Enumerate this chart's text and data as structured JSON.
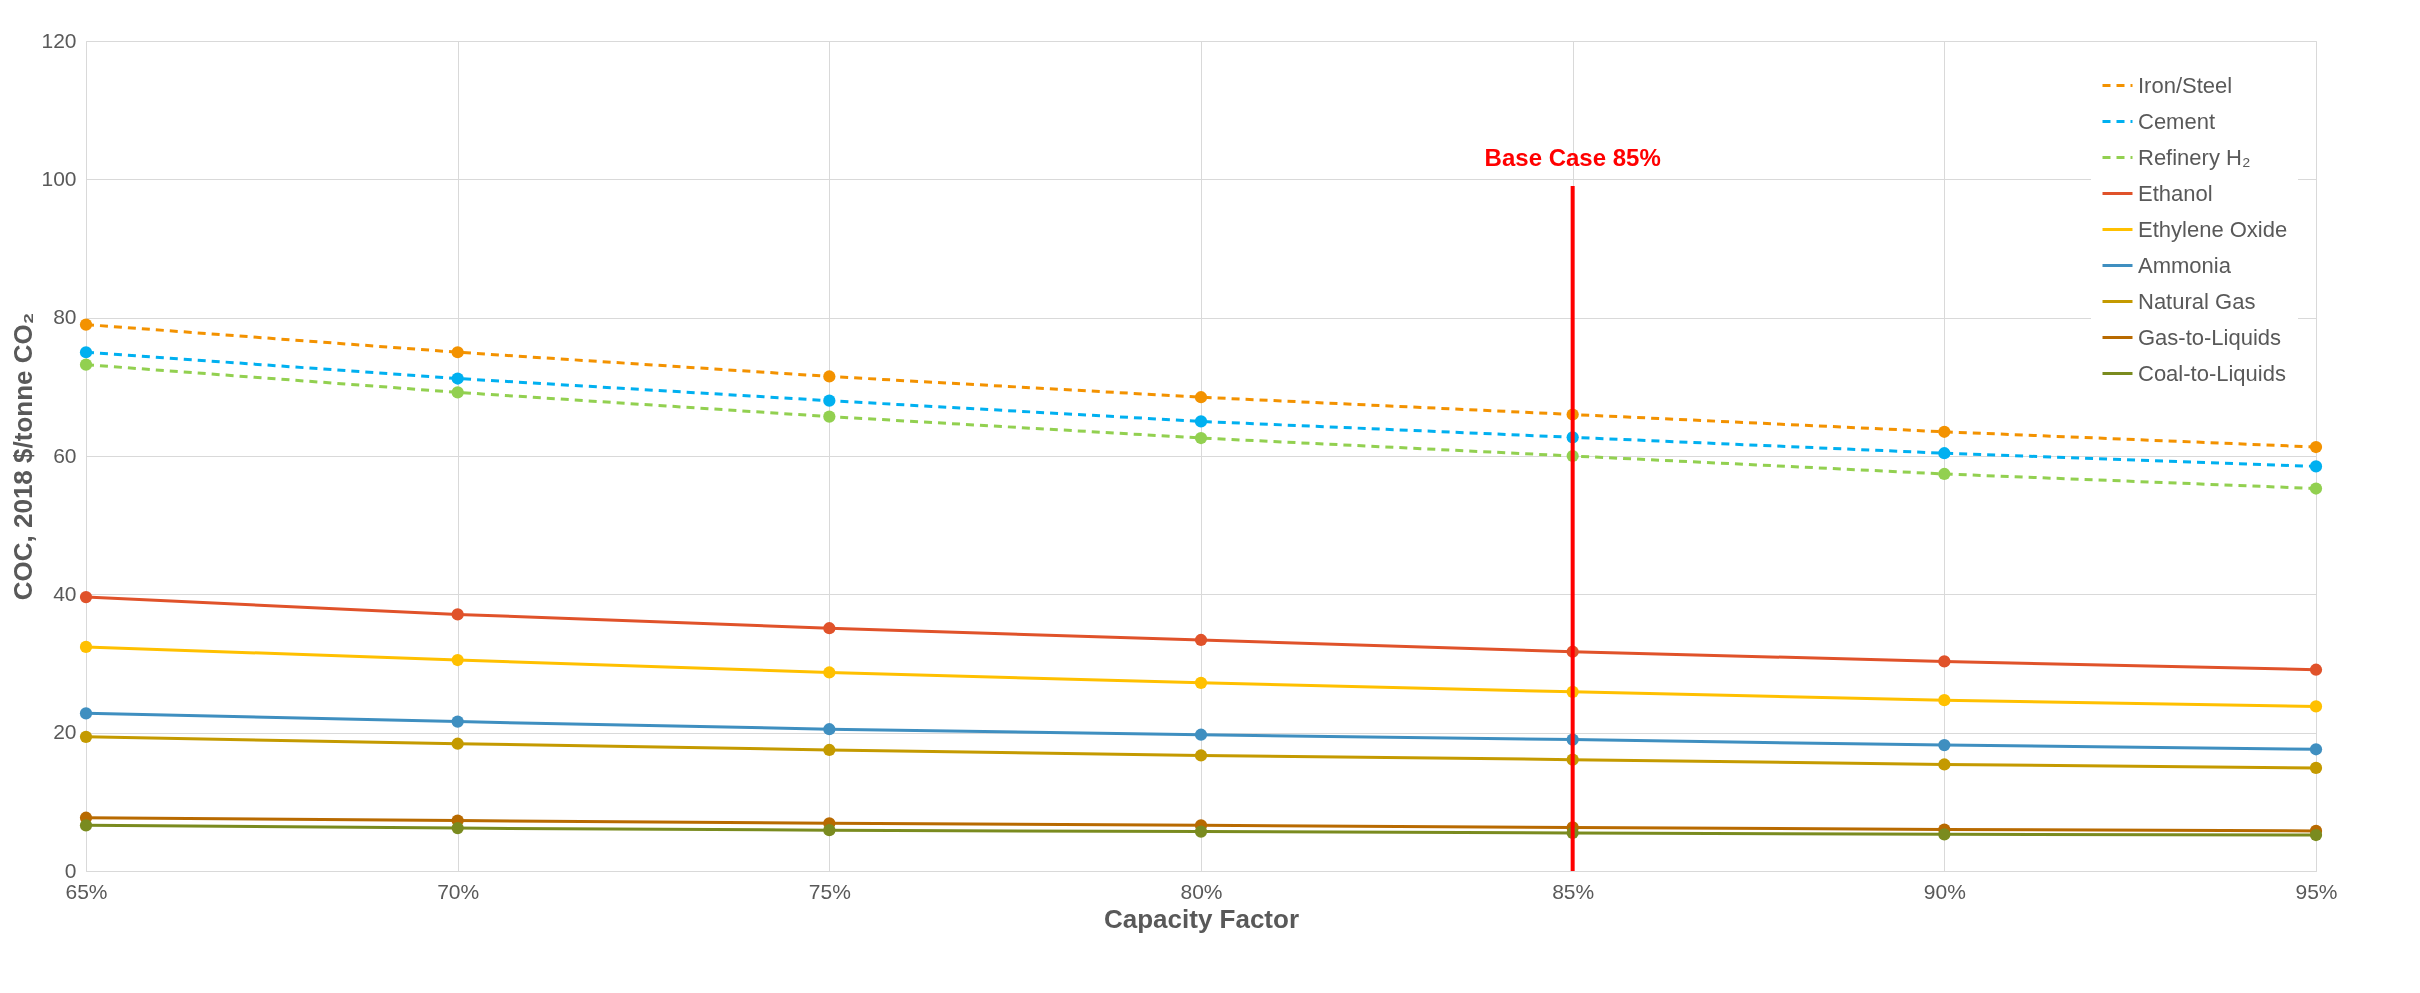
{
  "chart_data": {
    "type": "line",
    "xlabel": "Capacity Factor",
    "ylabel": "COC, 2018 $/tonne CO₂",
    "x": [
      65,
      70,
      75,
      80,
      85,
      90,
      95
    ],
    "xlim": [
      65,
      95
    ],
    "xticks": [
      {
        "value": 65,
        "label": "65%"
      },
      {
        "value": 70,
        "label": "70%"
      },
      {
        "value": 75,
        "label": "75%"
      },
      {
        "value": 80,
        "label": "80%"
      },
      {
        "value": 85,
        "label": "85%"
      },
      {
        "value": 90,
        "label": "90%"
      },
      {
        "value": 95,
        "label": "95%"
      }
    ],
    "ylim": [
      0,
      120
    ],
    "yticks": [
      0,
      20,
      40,
      60,
      80,
      100,
      120
    ],
    "grid": true,
    "legend": "top right",
    "marker": "circle",
    "ref_lines": [
      {
        "axis": "x",
        "value": 85,
        "label": "Base Case 85%",
        "color": "#ff0000"
      }
    ],
    "series": [
      {
        "name": "Iron/Steel",
        "color": "#f39200",
        "line_style": "dashed",
        "values": [
          79,
          75,
          71.5,
          68.5,
          66,
          63.5,
          61.3
        ]
      },
      {
        "name": "Cement",
        "color": "#00b0f0",
        "line_style": "dashed",
        "values": [
          75,
          71.2,
          68,
          65,
          62.7,
          60.4,
          58.5
        ]
      },
      {
        "name": "Refinery H₂",
        "color": "#92d050",
        "line_style": "dashed",
        "values": [
          73.2,
          69.2,
          65.7,
          62.6,
          60,
          57.4,
          55.3
        ]
      },
      {
        "name": "Ethanol",
        "color": "#e0522a",
        "line_style": "solid",
        "values": [
          39.6,
          37.1,
          35.1,
          33.4,
          31.7,
          30.3,
          29.1
        ]
      },
      {
        "name": "Ethylene Oxide",
        "color": "#ffc000",
        "line_style": "solid",
        "values": [
          32.4,
          30.5,
          28.7,
          27.2,
          25.9,
          24.7,
          23.8
        ]
      },
      {
        "name": "Ammonia",
        "color": "#3f8fc0",
        "line_style": "solid",
        "values": [
          22.8,
          21.6,
          20.5,
          19.7,
          19,
          18.2,
          17.6
        ]
      },
      {
        "name": "Natural Gas",
        "color": "#c49a00",
        "line_style": "solid",
        "values": [
          19.4,
          18.4,
          17.5,
          16.7,
          16.1,
          15.4,
          14.9
        ]
      },
      {
        "name": "Gas-to-Liquids",
        "color": "#b86a00",
        "line_style": "solid",
        "values": [
          7.7,
          7.3,
          6.9,
          6.6,
          6.3,
          6.0,
          5.8
        ]
      },
      {
        "name": "Coal-to-Liquids",
        "color": "#7a8b1f",
        "line_style": "solid",
        "values": [
          6.6,
          6.2,
          5.9,
          5.7,
          5.5,
          5.3,
          5.2
        ]
      }
    ]
  }
}
